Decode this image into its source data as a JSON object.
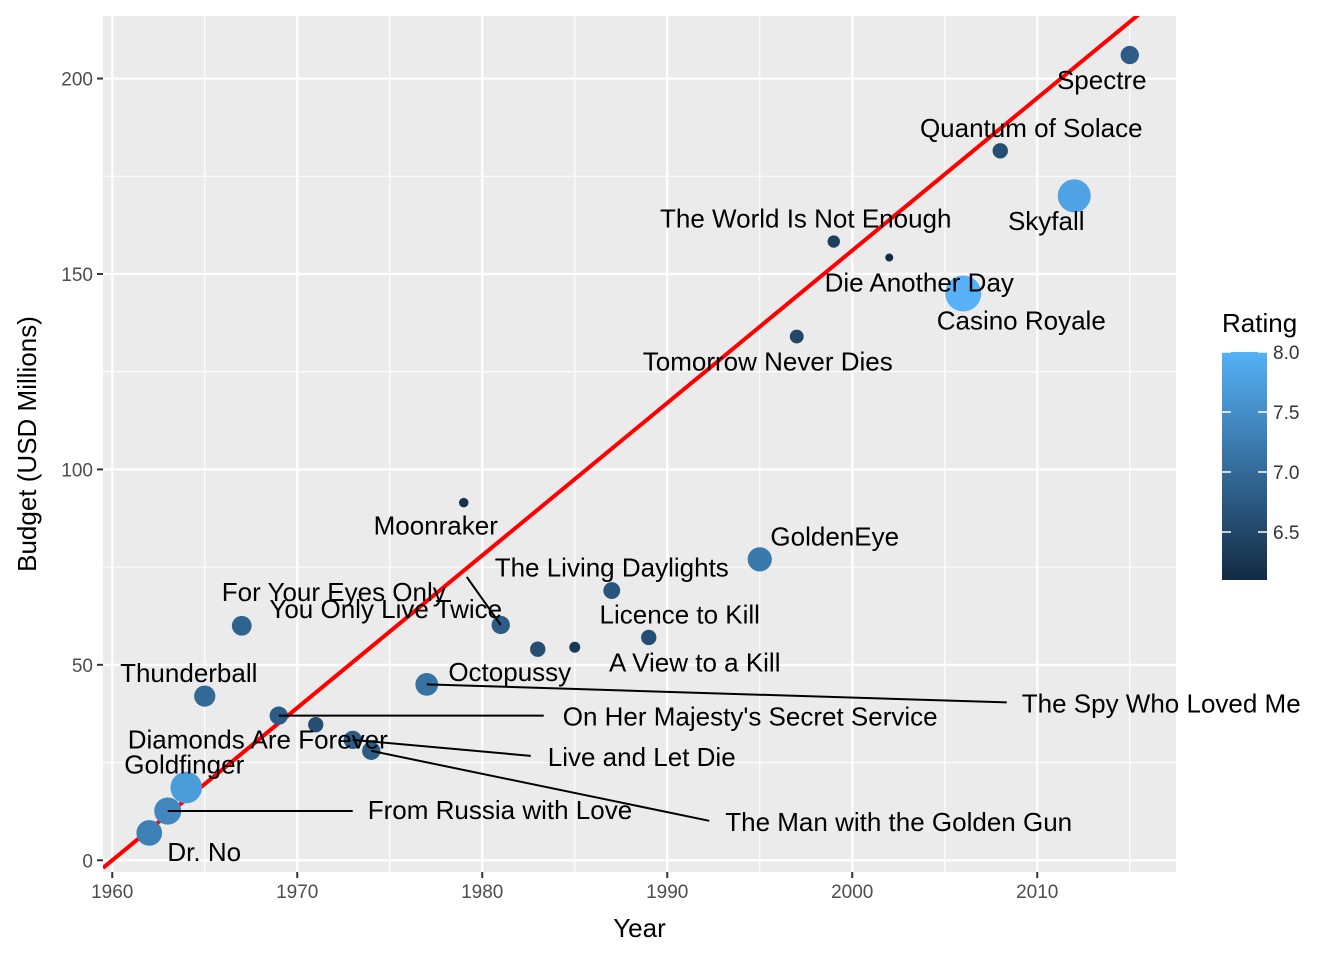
{
  "chart_data": {
    "type": "scatter",
    "xlabel": "Year",
    "ylabel": "Budget (USD Millions)",
    "xlim": [
      1959.5,
      2017.5
    ],
    "ylim": [
      -3,
      216
    ],
    "x_ticks": [
      1960,
      1970,
      1980,
      1990,
      2000,
      2010
    ],
    "y_ticks": [
      0,
      50,
      100,
      150,
      200
    ],
    "grid": true,
    "legend": {
      "title": "Rating",
      "position": "right",
      "range": [
        6.1,
        8.0
      ],
      "ticks": [
        6.5,
        7.0,
        7.5,
        8.0
      ],
      "tick_labels": [
        "6.5",
        "7.0",
        "7.5",
        "8.0"
      ],
      "color_low": "#132b43",
      "color_high": "#56b1f7"
    },
    "trend_line": {
      "color": "#ff0000",
      "intercept": 0,
      "slope": 3.9,
      "x_origin": 1960
    },
    "series": [
      {
        "points": [
          {
            "label": "Dr. No",
            "x": 1962,
            "y": 7,
            "rating": 7.3
          },
          {
            "label": "From Russia with Love",
            "x": 1963,
            "y": 12.6,
            "rating": 7.4
          },
          {
            "label": "Goldfinger",
            "x": 1964,
            "y": 18.6,
            "rating": 7.7
          },
          {
            "label": "Thunderball",
            "x": 1965,
            "y": 42,
            "rating": 7.0
          },
          {
            "label": "You Only Live Twice",
            "x": 1967,
            "y": 60,
            "rating": 6.9
          },
          {
            "label": "On Her Majesty's Secret Service",
            "x": 1969,
            "y": 37,
            "rating": 6.8
          },
          {
            "label": "Diamonds Are Forever",
            "x": 1971,
            "y": 34.7,
            "rating": 6.6
          },
          {
            "label": "Live and Let Die",
            "x": 1973,
            "y": 30.8,
            "rating": 6.8
          },
          {
            "label": "The Man with the Golden Gun",
            "x": 1974,
            "y": 28,
            "rating": 6.8
          },
          {
            "label": "The Spy Who Loved Me",
            "x": 1977,
            "y": 45,
            "rating": 7.1
          },
          {
            "label": "Moonraker",
            "x": 1979,
            "y": 91.5,
            "rating": 6.2
          },
          {
            "label": "For Your Eyes Only",
            "x": 1981,
            "y": 60.2,
            "rating": 6.8
          },
          {
            "label": "Octopussy",
            "x": 1983,
            "y": 54,
            "rating": 6.6
          },
          {
            "label": "A View to a Kill",
            "x": 1985,
            "y": 54.5,
            "rating": 6.3
          },
          {
            "label": "The Living Daylights",
            "x": 1987,
            "y": 69,
            "rating": 6.7
          },
          {
            "label": "Licence to Kill",
            "x": 1989,
            "y": 57,
            "rating": 6.6
          },
          {
            "label": "GoldenEye",
            "x": 1995,
            "y": 77,
            "rating": 7.2
          },
          {
            "label": "Tomorrow Never Dies",
            "x": 1997,
            "y": 134,
            "rating": 6.5
          },
          {
            "label": "The World Is Not Enough",
            "x": 1999,
            "y": 158.3,
            "rating": 6.4
          },
          {
            "label": "Die Another Day",
            "x": 2002,
            "y": 154.2,
            "rating": 6.1
          },
          {
            "label": "Casino Royale",
            "x": 2006,
            "y": 145,
            "rating": 8.0
          },
          {
            "label": "Quantum of Solace",
            "x": 2008,
            "y": 181.5,
            "rating": 6.6
          },
          {
            "label": "Skyfall",
            "x": 2012,
            "y": 170,
            "rating": 7.8
          },
          {
            "label": "Spectre",
            "x": 2015,
            "y": 206,
            "rating": 6.8
          }
        ]
      }
    ]
  }
}
